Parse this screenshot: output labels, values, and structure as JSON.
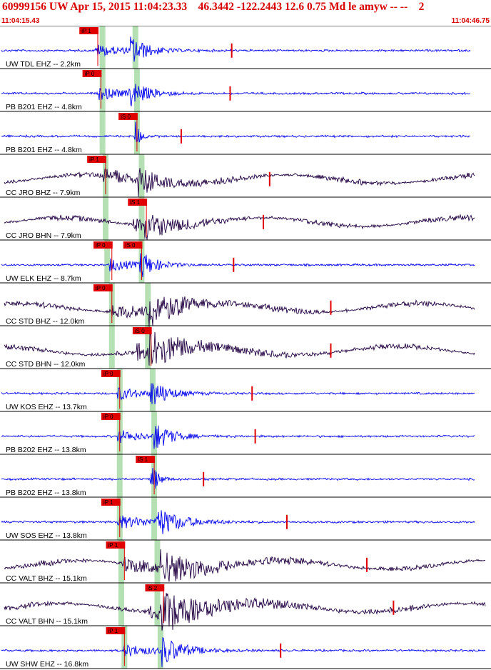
{
  "header": {
    "title": "60999156 UW Apr 15, 2015 11:04:23.33    46.3442 -122.2443 12.6 0.75 Md le amyw -- --    2",
    "start_time": "11:04:15.43",
    "end_time": "11:04:46.75"
  },
  "colors": {
    "title_red": "#d80000",
    "trace_blue": "#0000ee",
    "trace_dark": "#200040",
    "pick_red": "#e00000",
    "window_green": "#b4e0b4"
  },
  "chart_data": {
    "type": "seismogram",
    "time_range": [
      "11:04:15.43",
      "11:04:46.75"
    ],
    "grid": false,
    "channels": [
      {
        "label": "UW TDL EHZ -- 2.2km",
        "color": "blue",
        "p_pick": "iP 1",
        "s_pick": "",
        "onset": 6.1,
        "s_onset": 8.3,
        "duration": 2.8,
        "green": [
          6.4,
          8.5
        ],
        "end": 30.0
      },
      {
        "label": "PB B201 EHZ -- 4.8km",
        "color": "blue",
        "p_pick": "iP 0",
        "s_pick": "",
        "onset": 6.3,
        "s_onset": 8.2,
        "duration": 2.8,
        "green": [
          6.4,
          8.6
        ],
        "end": 30.0
      },
      {
        "label": "PB B201 EHZ -- 4.8km",
        "color": "blue",
        "p_pick": "",
        "s_pick": "iS 0",
        "onset": 8.6,
        "s_onset": 8.6,
        "duration": 0.6,
        "green": [
          6.4,
          8.6
        ],
        "end": 30.0
      },
      {
        "label": "CC JRO BHZ -- 7.9km",
        "color": "dark",
        "p_pick": "iP 1",
        "s_pick": "",
        "onset": 6.6,
        "s_onset": 8.8,
        "duration": 4.0,
        "green": [
          6.6,
          8.9
        ],
        "end": 30.3
      },
      {
        "label": "CC JRO BHN -- 7.9km",
        "color": "dark",
        "p_pick": "",
        "s_pick": "iS 1",
        "onset": 8.5,
        "s_onset": 9.2,
        "duration": 3.5,
        "green": [
          6.6,
          8.9
        ],
        "end": 30.3
      },
      {
        "label": "UW ELK EHZ -- 8.7km",
        "color": "blue",
        "p_pick": "iP 0",
        "s_pick": "iS 0",
        "onset": 7.0,
        "s_onset": 8.9,
        "duration": 2.5,
        "green": [
          6.7,
          8.9
        ],
        "end": 30.3
      },
      {
        "label": "CC STD BHZ -- 12.0km",
        "color": "dark",
        "p_pick": "iP 0",
        "s_pick": "",
        "onset": 7.0,
        "s_onset": 9.5,
        "duration": 6.0,
        "green": [
          7.0,
          9.3
        ],
        "end": 30.3
      },
      {
        "label": "CC STD BHN -- 12.0km",
        "color": "dark",
        "p_pick": "",
        "s_pick": "iS 0",
        "onset": 8.7,
        "s_onset": 9.5,
        "duration": 6.0,
        "green": [
          7.0,
          9.3
        ],
        "end": 30.3
      },
      {
        "label": "UW KOS EHZ -- 13.7km",
        "color": "blue",
        "p_pick": "iP 0",
        "s_pick": "",
        "onset": 7.5,
        "s_onset": 9.6,
        "duration": 2.8,
        "green": [
          7.5,
          9.6
        ],
        "end": 30.3
      },
      {
        "label": "PB B202 EHZ -- 13.8km",
        "color": "blue",
        "p_pick": "iP 0",
        "s_pick": "",
        "onset": 7.5,
        "s_onset": 9.8,
        "duration": 2.8,
        "green": [
          7.5,
          9.7
        ],
        "end": 30.3
      },
      {
        "label": "PB B202 EHZ -- 13.8km",
        "color": "blue",
        "p_pick": "",
        "s_pick": "iS 1",
        "onset": 9.6,
        "s_onset": 9.7,
        "duration": 0.8,
        "green": [
          7.5,
          9.7
        ],
        "end": 30.3
      },
      {
        "label": "UW SOS EHZ -- 13.8km",
        "color": "blue",
        "p_pick": "iP 1",
        "s_pick": "",
        "onset": 7.5,
        "s_onset": 9.9,
        "duration": 4.0,
        "green": [
          7.5,
          9.7
        ],
        "end": 30.3
      },
      {
        "label": "CC VALT BHZ -- 15.1km",
        "color": "dark",
        "p_pick": "iP 1",
        "s_pick": "",
        "onset": 7.8,
        "s_onset": 10.2,
        "duration": 7.0,
        "green": [
          7.6,
          9.9
        ],
        "end": 31.0
      },
      {
        "label": "CC VALT BHN -- 15.1km",
        "color": "dark",
        "p_pick": "",
        "s_pick": "iS 2",
        "onset": 9.6,
        "s_onset": 10.3,
        "duration": 8.0,
        "green": [
          7.6,
          9.9
        ],
        "end": 31.0
      },
      {
        "label": "UW SHW EHZ -- 16.8km",
        "color": "blue",
        "p_pick": "iP 1",
        "s_pick": "",
        "onset": 7.8,
        "s_onset": 10.3,
        "duration": 3.5,
        "green": [
          7.8,
          10.1
        ],
        "end": 31.0
      }
    ]
  }
}
